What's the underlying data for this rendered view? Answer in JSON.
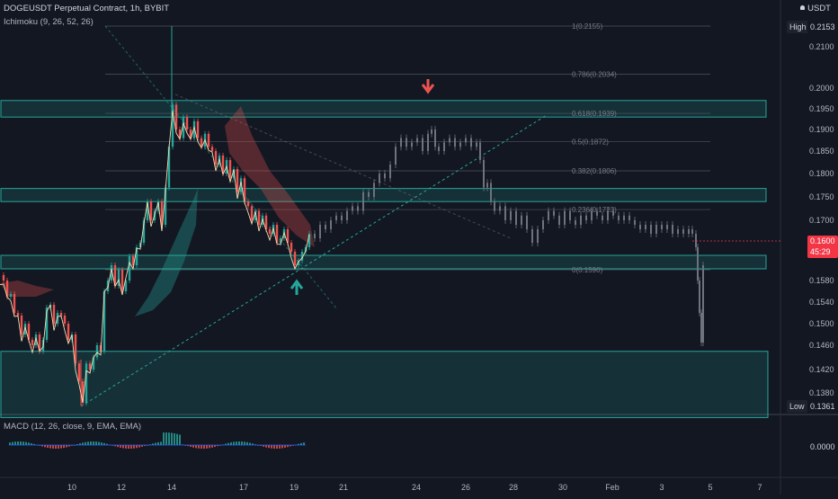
{
  "header": {
    "symbol": "DOGEUSDT Perpetual Contract, 1h, BYBIT",
    "indicator": "Ichimoku (9, 26, 52, 26)",
    "currency": "USDT",
    "macd_label": "MACD (12, 26, close, 9, EMA, EMA)"
  },
  "price_tags": {
    "high_label": "High",
    "high_value": "0.2153",
    "low_label": "Low",
    "low_value": "0.1361",
    "last_value": "0.1600",
    "countdown": "45:29",
    "macd_zero": "0.0000"
  },
  "colors": {
    "bg": "#131722",
    "up": "#26a69a",
    "down": "#ef5350",
    "grid": "#2a2e39",
    "zone": "#26a69a",
    "fib": "#787b86",
    "last": "#f23645"
  },
  "chart_data": {
    "type": "candlestick",
    "price_axis": {
      "ticks": [
        0.21,
        0.2,
        0.195,
        0.19,
        0.185,
        0.18,
        0.175,
        0.17,
        0.158,
        0.154,
        0.15,
        0.146,
        0.142,
        0.138
      ],
      "labels": [
        "0.2100",
        "0.2000",
        "0.1950",
        "0.1900",
        "0.1850",
        "0.1800",
        "0.1750",
        "0.1700",
        "0.1580",
        "0.1540",
        "0.1500",
        "0.1460",
        "0.1420",
        "0.1380"
      ]
    },
    "time_axis": [
      "10",
      "12",
      "14",
      "17",
      "19",
      "21",
      "24",
      "26",
      "28",
      "30",
      "Feb",
      "3",
      "5",
      "7"
    ],
    "fib_levels": [
      {
        "ratio": "1",
        "price": 0.2155,
        "label": "1(0.2155)"
      },
      {
        "ratio": "0.786",
        "price": 0.2034,
        "label": "0.786(0.2034)"
      },
      {
        "ratio": "0.618",
        "price": 0.1939,
        "label": "0.618(0.1939)"
      },
      {
        "ratio": "0.5",
        "price": 0.1872,
        "label": "0.5(0.1872)"
      },
      {
        "ratio": "0.382",
        "price": 0.1806,
        "label": "0.382(0.1806)"
      },
      {
        "ratio": "0.236",
        "price": 0.1723,
        "label": "0.236(0.1723)"
      },
      {
        "ratio": "0",
        "price": 0.159,
        "label": "0(0.1590)"
      }
    ],
    "zones": [
      {
        "name": "resistance-zone-1",
        "from": 0.193,
        "to": 0.197
      },
      {
        "name": "resistance-zone-2",
        "from": 0.174,
        "to": 0.1768
      },
      {
        "name": "support-zone",
        "from": 0.1592,
        "to": 0.1622
      },
      {
        "name": "demand-zone",
        "from": 0.1335,
        "to": 0.145
      }
    ],
    "series": [
      {
        "path": [
          [
            0,
            0.1585
          ],
          [
            4,
            0.158
          ],
          [
            8,
            0.155
          ],
          [
            12,
            0.1555
          ],
          [
            16,
            0.152
          ],
          [
            20,
            0.1515
          ],
          [
            24,
            0.148
          ],
          [
            28,
            0.15
          ],
          [
            32,
            0.147
          ],
          [
            36,
            0.146
          ],
          [
            40,
            0.148
          ],
          [
            44,
            0.145
          ],
          [
            48,
            0.147
          ],
          [
            52,
            0.153
          ],
          [
            56,
            0.1535
          ],
          [
            60,
            0.15
          ],
          [
            64,
            0.152
          ],
          [
            68,
            0.1515
          ],
          [
            72,
            0.15
          ],
          [
            76,
            0.147
          ],
          [
            80,
            0.148
          ],
          [
            84,
            0.143
          ],
          [
            88,
            0.14
          ],
          [
            92,
            0.1365
          ],
          [
            96,
            0.143
          ],
          [
            100,
            0.142
          ],
          [
            104,
            0.144
          ],
          [
            108,
            0.146
          ],
          [
            112,
            0.145
          ],
          [
            116,
            0.156
          ],
          [
            120,
            0.158
          ],
          [
            124,
            0.16
          ],
          [
            128,
            0.157
          ],
          [
            132,
            0.159
          ],
          [
            136,
            0.156
          ],
          [
            140,
            0.158
          ],
          [
            144,
            0.162
          ],
          [
            148,
            0.16
          ],
          [
            152,
            0.164
          ],
          [
            156,
            0.165
          ],
          [
            160,
            0.17
          ],
          [
            164,
            0.174
          ],
          [
            168,
            0.17
          ],
          [
            172,
            0.172
          ],
          [
            176,
            0.174
          ],
          [
            180,
            0.169
          ],
          [
            184,
            0.177
          ],
          [
            188,
            0.186
          ],
          [
            192,
            0.196
          ],
          [
            196,
            0.19
          ],
          [
            200,
            0.188
          ],
          [
            204,
            0.193
          ],
          [
            208,
            0.19
          ],
          [
            212,
            0.188
          ],
          [
            216,
            0.192
          ],
          [
            220,
            0.188
          ],
          [
            224,
            0.186
          ],
          [
            228,
            0.189
          ],
          [
            232,
            0.186
          ],
          [
            236,
            0.185
          ],
          [
            240,
            0.182
          ],
          [
            244,
            0.184
          ],
          [
            248,
            0.18
          ],
          [
            252,
            0.183
          ],
          [
            256,
            0.179
          ],
          [
            260,
            0.181
          ],
          [
            264,
            0.176
          ],
          [
            268,
            0.179
          ],
          [
            272,
            0.174
          ],
          [
            276,
            0.173
          ],
          [
            280,
            0.17
          ],
          [
            284,
            0.172
          ],
          [
            288,
            0.169
          ],
          [
            292,
            0.171
          ],
          [
            296,
            0.168
          ],
          [
            300,
            0.167
          ],
          [
            304,
            0.169
          ],
          [
            308,
            0.165
          ],
          [
            312,
            0.166
          ],
          [
            316,
            0.168
          ],
          [
            320,
            0.165
          ],
          [
            324,
            0.163
          ],
          [
            328,
            0.16
          ],
          [
            332,
            0.161
          ],
          [
            336,
            0.163
          ],
          [
            340,
            0.164
          ],
          [
            344,
            0.167
          ]
        ]
      },
      {
        "path": [
          [
            344,
            0.167
          ],
          [
            350,
            0.166
          ],
          [
            356,
            0.169
          ],
          [
            362,
            0.168
          ],
          [
            368,
            0.17
          ],
          [
            374,
            0.171
          ],
          [
            380,
            0.17
          ],
          [
            386,
            0.172
          ],
          [
            392,
            0.173
          ],
          [
            398,
            0.172
          ],
          [
            404,
            0.176
          ],
          [
            410,
            0.175
          ],
          [
            416,
            0.178
          ],
          [
            422,
            0.18
          ],
          [
            428,
            0.179
          ],
          [
            434,
            0.182
          ],
          [
            440,
            0.186
          ],
          [
            446,
            0.188
          ],
          [
            452,
            0.186
          ],
          [
            458,
            0.187
          ],
          [
            464,
            0.188
          ],
          [
            470,
            0.185
          ],
          [
            476,
            0.189
          ],
          [
            480,
            0.19
          ],
          [
            484,
            0.186
          ],
          [
            488,
            0.185
          ],
          [
            494,
            0.187
          ],
          [
            500,
            0.188
          ],
          [
            506,
            0.186
          ],
          [
            512,
            0.187
          ],
          [
            518,
            0.188
          ],
          [
            524,
            0.186
          ],
          [
            530,
            0.187
          ],
          [
            534,
            0.183
          ],
          [
            538,
            0.177
          ],
          [
            542,
            0.178
          ],
          [
            546,
            0.174
          ],
          [
            550,
            0.172
          ],
          [
            556,
            0.173
          ],
          [
            562,
            0.17
          ],
          [
            568,
            0.172
          ],
          [
            574,
            0.169
          ],
          [
            580,
            0.171
          ],
          [
            586,
            0.168
          ],
          [
            592,
            0.165
          ],
          [
            598,
            0.168
          ],
          [
            604,
            0.17
          ],
          [
            610,
            0.172
          ],
          [
            616,
            0.171
          ],
          [
            622,
            0.169
          ],
          [
            628,
            0.172
          ],
          [
            634,
            0.17
          ],
          [
            640,
            0.169
          ],
          [
            646,
            0.171
          ],
          [
            652,
            0.17
          ],
          [
            658,
            0.172
          ],
          [
            664,
            0.171
          ],
          [
            670,
            0.17
          ],
          [
            676,
            0.172
          ],
          [
            682,
            0.171
          ],
          [
            688,
            0.17
          ],
          [
            694,
            0.171
          ],
          [
            700,
            0.17
          ],
          [
            706,
            0.169
          ],
          [
            712,
            0.168
          ],
          [
            718,
            0.169
          ],
          [
            724,
            0.167
          ],
          [
            730,
            0.169
          ],
          [
            736,
            0.168
          ],
          [
            742,
            0.169
          ],
          [
            748,
            0.167
          ],
          [
            754,
            0.168
          ],
          [
            760,
            0.167
          ],
          [
            766,
            0.168
          ],
          [
            770,
            0.167
          ],
          [
            774,
            0.164
          ],
          [
            776,
            0.158
          ],
          [
            778,
            0.152
          ],
          [
            780,
            0.1465
          ],
          [
            782,
            0.16
          ]
        ]
      }
    ]
  }
}
